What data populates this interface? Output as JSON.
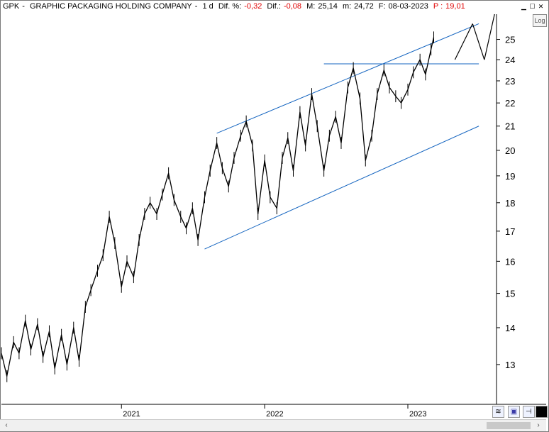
{
  "header": {
    "ticker": "GPK",
    "company": "GRAPHIC PACKAGING HOLDING COMPANY",
    "period": "1 d",
    "dif_pct_label": "Dif. %:",
    "dif_pct_value": "-0,32",
    "dif_label": "Dif.:",
    "dif_value": "-0,08",
    "max_label": "M:",
    "max_value": "25,14",
    "min_label": "m:",
    "min_value": "24,72",
    "date_label": "F:",
    "date_value": "08-03-2023",
    "p_label": "P :",
    "p_value": "19,01"
  },
  "controls": {
    "log_label": "Log"
  },
  "colors": {
    "price": "#000000",
    "trendline": "#1565c0",
    "negative": "#e00000"
  },
  "chart_data": {
    "type": "line",
    "scale": "log",
    "ylim": [
      12,
      26.3
    ],
    "y_ticks": [
      13,
      14,
      15,
      16,
      17,
      18,
      19,
      20,
      21,
      22,
      23,
      24,
      25
    ],
    "x_ticks": [
      "2021",
      "2022",
      "2023"
    ],
    "x_tick_dates": [
      "2021-01-01",
      "2022-01-01",
      "2023-01-01"
    ],
    "xlim": [
      "2020-03-01",
      "2023-08-15"
    ],
    "series": [
      {
        "values": [
          [
            "2020-03-01",
            13.3
          ],
          [
            "2020-03-15",
            12.7
          ],
          [
            "2020-04-01",
            13.6
          ],
          [
            "2020-04-15",
            13.3
          ],
          [
            "2020-05-01",
            14.2
          ],
          [
            "2020-05-15",
            13.4
          ],
          [
            "2020-06-01",
            14.1
          ],
          [
            "2020-06-15",
            13.2
          ],
          [
            "2020-07-01",
            13.9
          ],
          [
            "2020-07-15",
            12.9
          ],
          [
            "2020-08-01",
            13.8
          ],
          [
            "2020-08-15",
            13.0
          ],
          [
            "2020-09-01",
            14.0
          ],
          [
            "2020-09-15",
            13.1
          ],
          [
            "2020-10-01",
            14.6
          ],
          [
            "2020-10-15",
            15.1
          ],
          [
            "2020-11-01",
            15.7
          ],
          [
            "2020-11-15",
            16.2
          ],
          [
            "2020-12-01",
            17.5
          ],
          [
            "2020-12-15",
            16.6
          ],
          [
            "2021-01-01",
            15.2
          ],
          [
            "2021-01-15",
            16.0
          ],
          [
            "2021-02-01",
            15.5
          ],
          [
            "2021-02-15",
            16.7
          ],
          [
            "2021-03-01",
            17.6
          ],
          [
            "2021-03-15",
            18.0
          ],
          [
            "2021-04-01",
            17.6
          ],
          [
            "2021-04-15",
            18.3
          ],
          [
            "2021-05-01",
            19.1
          ],
          [
            "2021-05-15",
            18.1
          ],
          [
            "2021-06-01",
            17.5
          ],
          [
            "2021-06-15",
            17.1
          ],
          [
            "2021-07-01",
            17.8
          ],
          [
            "2021-07-15",
            16.7
          ],
          [
            "2021-08-01",
            18.2
          ],
          [
            "2021-08-15",
            19.2
          ],
          [
            "2021-09-01",
            20.3
          ],
          [
            "2021-09-15",
            19.3
          ],
          [
            "2021-10-01",
            18.6
          ],
          [
            "2021-10-15",
            19.7
          ],
          [
            "2021-11-01",
            20.6
          ],
          [
            "2021-11-15",
            21.2
          ],
          [
            "2021-12-01",
            20.2
          ],
          [
            "2021-12-15",
            17.6
          ],
          [
            "2022-01-01",
            19.6
          ],
          [
            "2022-01-15",
            18.2
          ],
          [
            "2022-02-01",
            17.8
          ],
          [
            "2022-02-15",
            19.7
          ],
          [
            "2022-03-01",
            20.5
          ],
          [
            "2022-03-15",
            19.2
          ],
          [
            "2022-04-01",
            21.6
          ],
          [
            "2022-04-15",
            20.2
          ],
          [
            "2022-05-01",
            22.4
          ],
          [
            "2022-05-15",
            21.0
          ],
          [
            "2022-06-01",
            19.2
          ],
          [
            "2022-06-15",
            20.6
          ],
          [
            "2022-07-01",
            21.4
          ],
          [
            "2022-07-15",
            20.3
          ],
          [
            "2022-08-01",
            22.7
          ],
          [
            "2022-08-15",
            23.6
          ],
          [
            "2022-09-01",
            22.2
          ],
          [
            "2022-09-15",
            19.6
          ],
          [
            "2022-10-01",
            20.6
          ],
          [
            "2022-10-15",
            22.4
          ],
          [
            "2022-11-01",
            23.5
          ],
          [
            "2022-11-15",
            22.7
          ],
          [
            "2022-12-01",
            22.3
          ],
          [
            "2022-12-15",
            22.0
          ],
          [
            "2023-01-01",
            22.6
          ],
          [
            "2023-01-15",
            23.4
          ],
          [
            "2023-02-01",
            24.0
          ],
          [
            "2023-02-15",
            23.3
          ],
          [
            "2023-03-01",
            24.5
          ],
          [
            "2023-03-08",
            25.1
          ]
        ]
      }
    ],
    "annotations": {
      "channel_upper": [
        [
          "2021-09-01",
          20.7
        ],
        [
          "2023-07-01",
          25.8
        ]
      ],
      "channel_lower": [
        [
          "2021-08-01",
          16.4
        ],
        [
          "2023-07-01",
          21.0
        ]
      ],
      "resistance": [
        [
          "2022-06-01",
          23.8
        ],
        [
          "2023-07-01",
          23.8
        ]
      ],
      "projection": [
        [
          "2023-05-01",
          24.0
        ],
        [
          "2023-06-15",
          25.8
        ],
        [
          "2023-07-15",
          24.0
        ],
        [
          "2023-08-10",
          26.3
        ]
      ]
    }
  }
}
